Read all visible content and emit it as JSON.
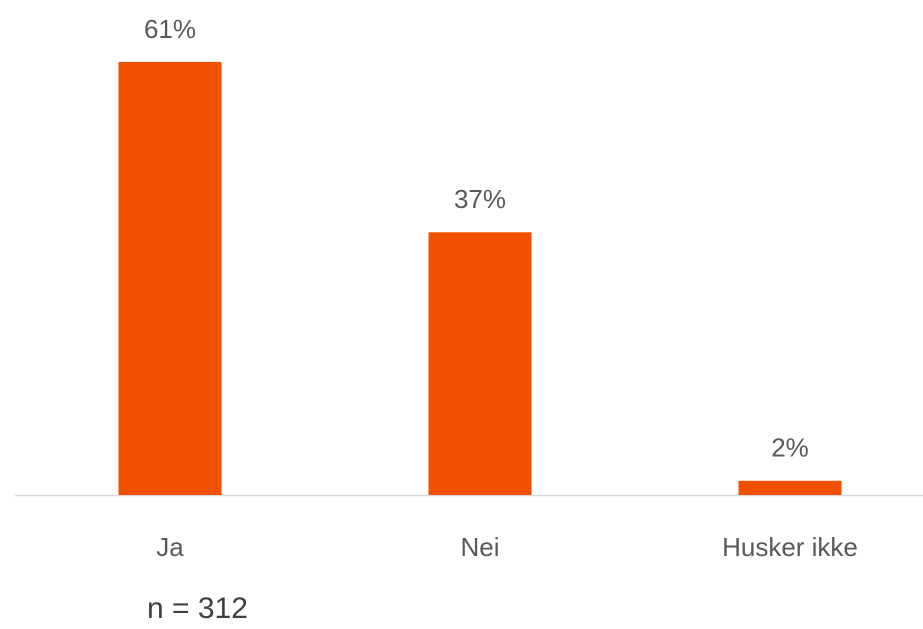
{
  "chart_data": {
    "type": "bar",
    "categories": [
      "Ja",
      "Nei",
      "Husker ikke"
    ],
    "values": [
      61,
      37,
      2
    ],
    "value_labels": [
      "61%",
      "37%",
      "2%"
    ],
    "color": "#f05000",
    "annotation": "n =  312"
  }
}
